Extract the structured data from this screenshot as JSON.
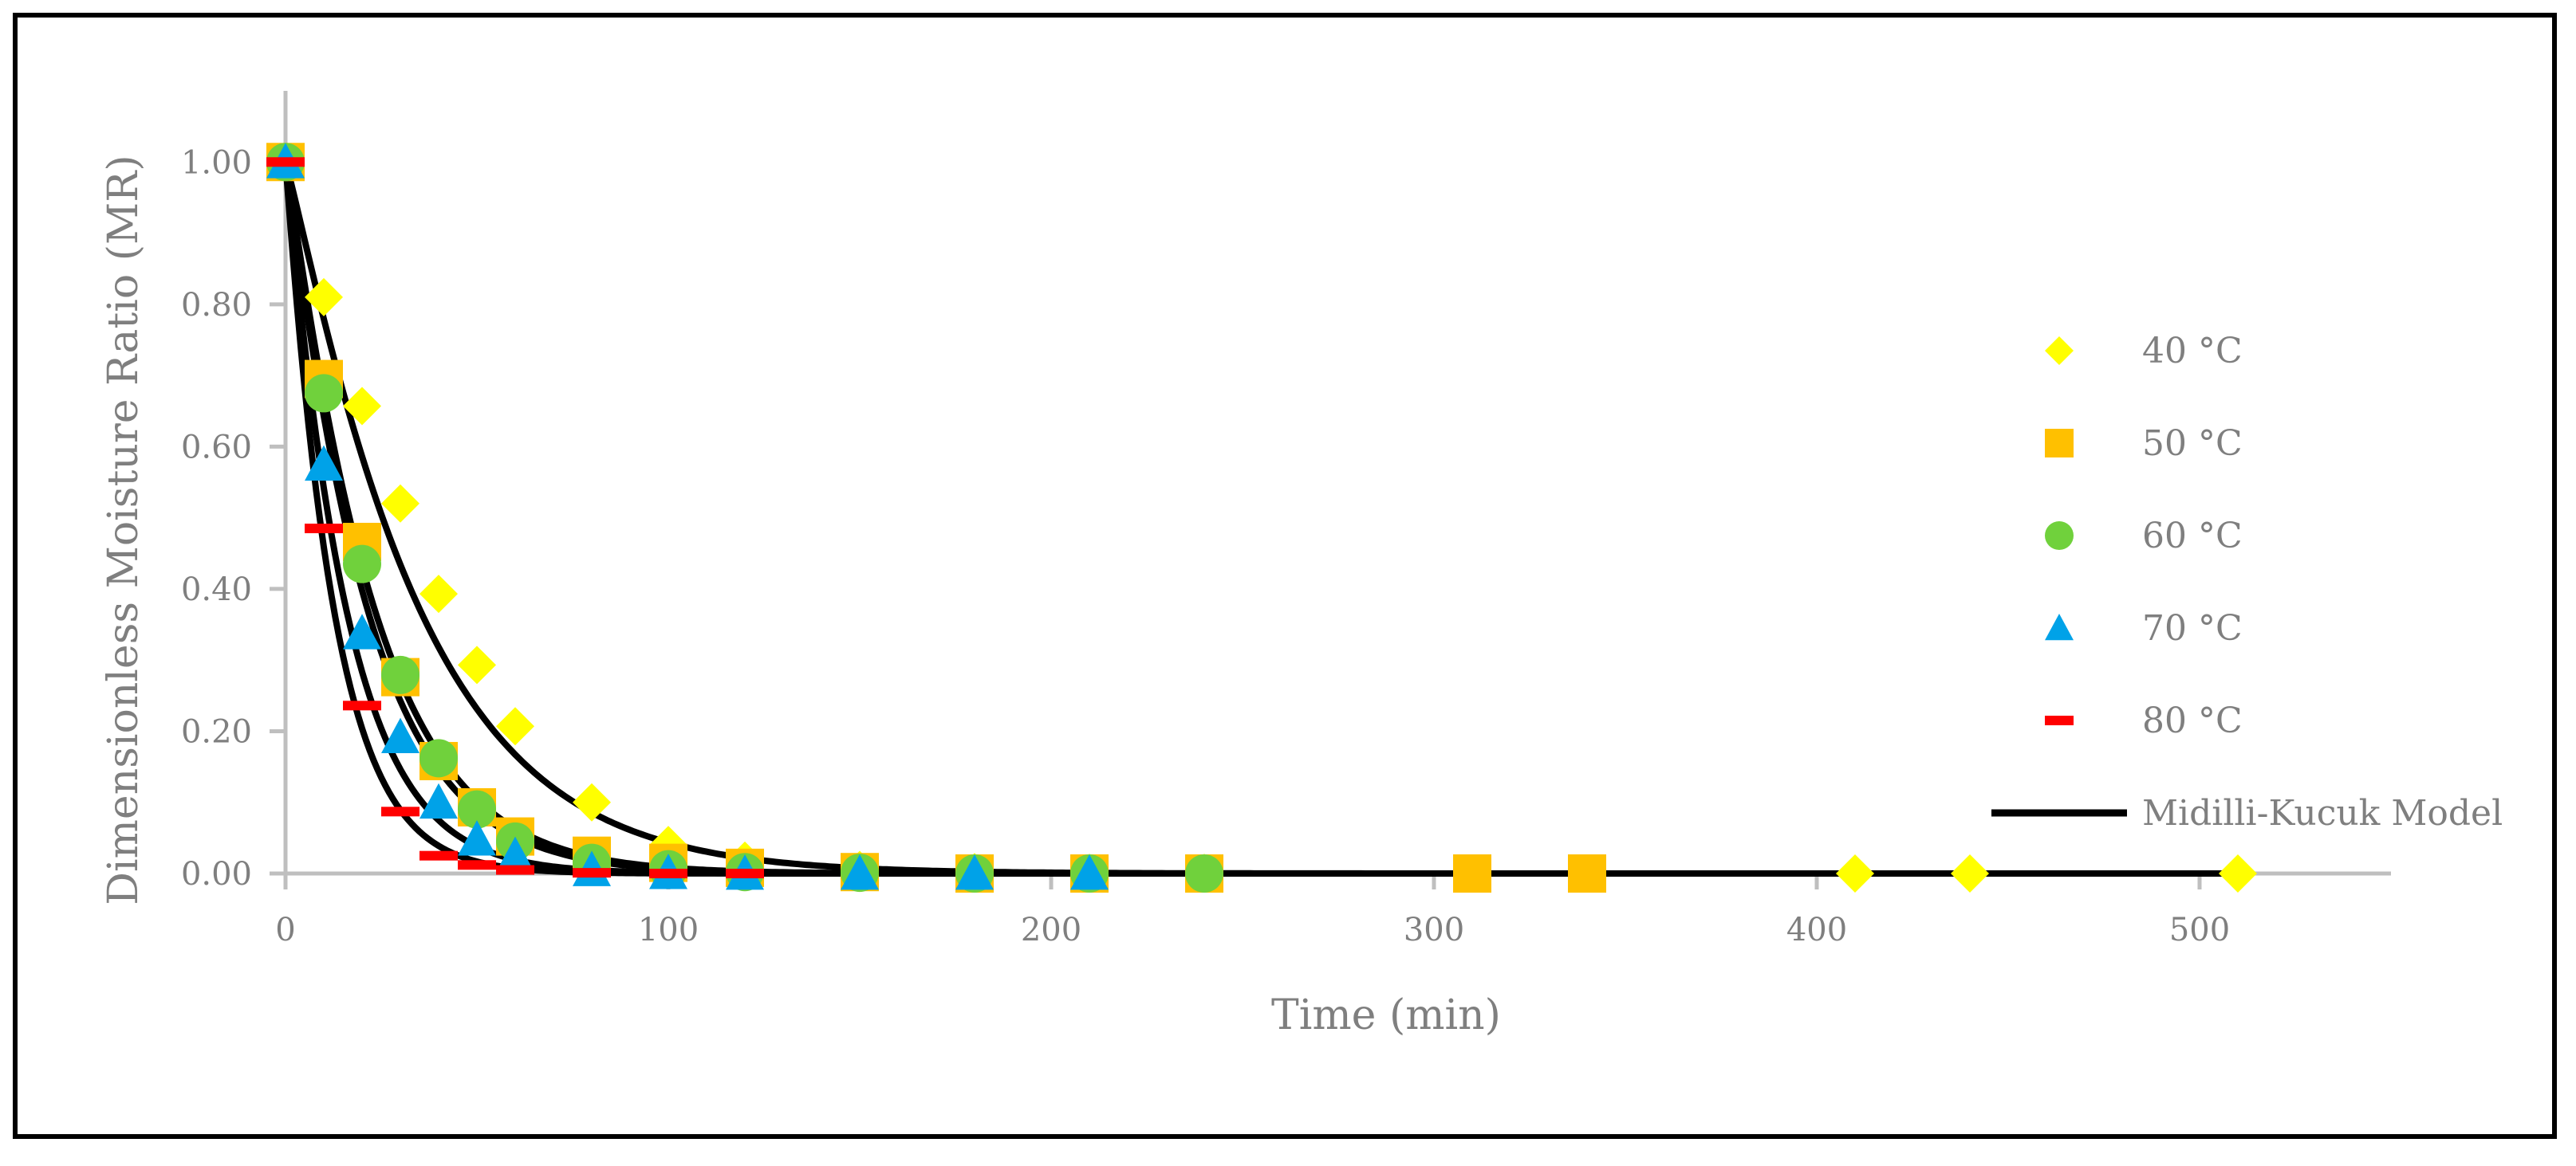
{
  "chart_data": {
    "type": "scatter",
    "title": "",
    "xlabel": "Time (min)",
    "ylabel": "Dimensionless Moisture Ratio (MR)",
    "xlim": [
      0,
      550
    ],
    "ylim": [
      0,
      1.1
    ],
    "xticks": [
      "0",
      "100",
      "200",
      "300",
      "400",
      "500"
    ],
    "yticks": [
      "0.00",
      "0.20",
      "0.40",
      "0.60",
      "0.80",
      "1.00"
    ],
    "grid": false,
    "legend_position": "right",
    "series": [
      {
        "name": "40 °C",
        "marker": "diamond",
        "color": "#FFFF00",
        "points": [
          [
            0,
            1.0
          ],
          [
            10,
            0.81
          ],
          [
            20,
            0.657
          ],
          [
            30,
            0.52
          ],
          [
            40,
            0.393
          ],
          [
            50,
            0.293
          ],
          [
            60,
            0.207
          ],
          [
            80,
            0.1
          ],
          [
            100,
            0.04
          ],
          [
            120,
            0.018
          ],
          [
            150,
            0.005
          ],
          [
            180,
            0.002
          ],
          [
            210,
            0.001
          ],
          [
            240,
            0.001
          ],
          [
            310,
            0.0
          ],
          [
            340,
            0.0
          ],
          [
            410,
            0.0
          ],
          [
            440,
            0.0
          ],
          [
            510,
            0.0
          ]
        ]
      },
      {
        "name": "50 °C",
        "marker": "square",
        "color": "#FFC000",
        "points": [
          [
            0,
            1.0
          ],
          [
            10,
            0.695
          ],
          [
            20,
            0.466
          ],
          [
            30,
            0.276
          ],
          [
            40,
            0.158
          ],
          [
            50,
            0.093
          ],
          [
            60,
            0.052
          ],
          [
            80,
            0.025
          ],
          [
            100,
            0.015
          ],
          [
            120,
            0.008
          ],
          [
            150,
            0.002
          ],
          [
            180,
            0.0
          ],
          [
            210,
            0.0
          ],
          [
            240,
            0.0
          ],
          [
            310,
            0.0
          ],
          [
            340,
            0.0
          ]
        ]
      },
      {
        "name": "60 °C",
        "marker": "circle",
        "color": "#70D13C",
        "points": [
          [
            0,
            1.0
          ],
          [
            10,
            0.675
          ],
          [
            20,
            0.435
          ],
          [
            30,
            0.279
          ],
          [
            40,
            0.162
          ],
          [
            50,
            0.09
          ],
          [
            60,
            0.045
          ],
          [
            80,
            0.015
          ],
          [
            100,
            0.006
          ],
          [
            120,
            0.002
          ],
          [
            150,
            0.001
          ],
          [
            180,
            0.0
          ],
          [
            210,
            0.0
          ],
          [
            240,
            0.0
          ]
        ]
      },
      {
        "name": "70 °C",
        "marker": "triangle",
        "color": "#00A2E8",
        "points": [
          [
            0,
            1.0
          ],
          [
            10,
            0.575
          ],
          [
            20,
            0.338
          ],
          [
            30,
            0.192
          ],
          [
            40,
            0.1
          ],
          [
            50,
            0.048
          ],
          [
            60,
            0.025
          ],
          [
            80,
            0.005
          ],
          [
            100,
            0.001
          ],
          [
            120,
            0.0
          ],
          [
            150,
            0.0
          ],
          [
            180,
            0.0
          ],
          [
            210,
            0.0
          ]
        ]
      },
      {
        "name": "80 °C",
        "marker": "dash",
        "color": "#FF0000",
        "points": [
          [
            0,
            1.0
          ],
          [
            10,
            0.485
          ],
          [
            20,
            0.236
          ],
          [
            30,
            0.087
          ],
          [
            40,
            0.025
          ],
          [
            50,
            0.012
          ],
          [
            60,
            0.005
          ],
          [
            80,
            0.001
          ],
          [
            100,
            0.0
          ],
          [
            120,
            0.0
          ]
        ]
      }
    ],
    "model": {
      "name": "Midilli-Kucuk Model",
      "color": "#000000",
      "curves": [
        {
          "k": 0.0198,
          "n": 1.1
        },
        {
          "k": 0.0331,
          "n": 1.08
        },
        {
          "k": 0.0385,
          "n": 1.06
        },
        {
          "k": 0.0559,
          "n": 1.04
        },
        {
          "k": 0.0727,
          "n": 1.03
        }
      ]
    }
  }
}
